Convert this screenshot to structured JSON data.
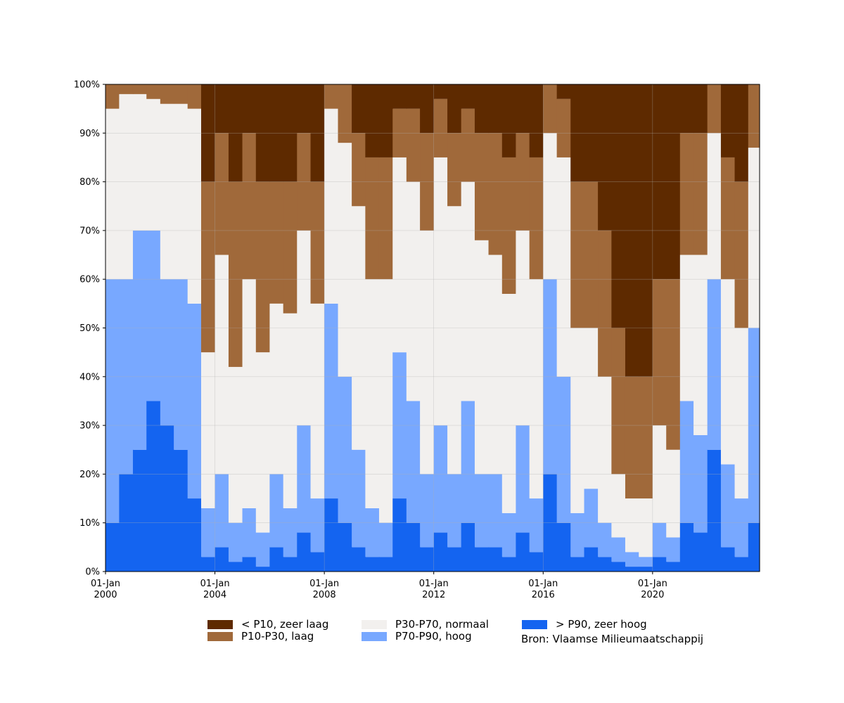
{
  "chart_data": {
    "type": "area",
    "stacked": true,
    "normalized": true,
    "title": "",
    "xlabel": "",
    "ylabel": "",
    "x_range": [
      "2000-01-01",
      "2023-11-30"
    ],
    "ylim": [
      0,
      100
    ],
    "y_ticks": [
      "0%",
      "10%",
      "20%",
      "30%",
      "40%",
      "50%",
      "60%",
      "70%",
      "80%",
      "90%",
      "100%"
    ],
    "x_ticks": [
      {
        "date": "2000-01-01",
        "line1": "01-Jan",
        "line2": "2000"
      },
      {
        "date": "2004-01-01",
        "line1": "01-Jan",
        "line2": "2004"
      },
      {
        "date": "2008-01-01",
        "line1": "01-Jan",
        "line2": "2008"
      },
      {
        "date": "2012-01-01",
        "line1": "01-Jan",
        "line2": "2012"
      },
      {
        "date": "2016-01-01",
        "line1": "01-Jan",
        "line2": "2016"
      },
      {
        "date": "2020-01-01",
        "line1": "01-Jan",
        "line2": "2020"
      }
    ],
    "grid": true,
    "legend_placement": "bottom",
    "x": [
      "2000-01",
      "2000-07",
      "2001-01",
      "2001-07",
      "2002-01",
      "2002-07",
      "2003-01",
      "2003-07",
      "2004-01",
      "2004-07",
      "2005-01",
      "2005-07",
      "2006-01",
      "2006-07",
      "2007-01",
      "2007-07",
      "2008-01",
      "2008-07",
      "2009-01",
      "2009-07",
      "2010-01",
      "2010-07",
      "2011-01",
      "2011-07",
      "2012-01",
      "2012-07",
      "2013-01",
      "2013-07",
      "2014-01",
      "2014-07",
      "2015-01",
      "2015-07",
      "2016-01",
      "2016-07",
      "2017-01",
      "2017-07",
      "2018-01",
      "2018-07",
      "2019-01",
      "2019-07",
      "2020-01",
      "2020-07",
      "2021-01",
      "2021-07",
      "2022-01",
      "2022-07",
      "2023-01",
      "2023-07"
    ],
    "series": [
      {
        "name": "> P90, zeer hoog",
        "color": "#1464f0",
        "values": [
          10,
          20,
          25,
          35,
          30,
          25,
          15,
          3,
          5,
          2,
          3,
          1,
          5,
          3,
          8,
          4,
          15,
          10,
          5,
          3,
          3,
          15,
          10,
          5,
          8,
          5,
          10,
          5,
          5,
          3,
          8,
          4,
          20,
          10,
          3,
          5,
          3,
          2,
          1,
          1,
          3,
          2,
          10,
          8,
          25,
          5,
          3,
          10
        ]
      },
      {
        "name": "P70-P90, hoog",
        "color": "#78a8ff",
        "values": [
          50,
          40,
          45,
          35,
          30,
          35,
          40,
          10,
          15,
          8,
          10,
          7,
          15,
          10,
          22,
          11,
          40,
          30,
          20,
          10,
          7,
          30,
          25,
          15,
          22,
          15,
          25,
          15,
          15,
          9,
          22,
          11,
          40,
          30,
          9,
          12,
          7,
          5,
          3,
          2,
          7,
          5,
          25,
          20,
          35,
          17,
          12,
          40
        ]
      },
      {
        "name": "P30-P70, normaal",
        "color": "#f2f0ee",
        "values": [
          35,
          38,
          28,
          27,
          36,
          36,
          40,
          32,
          45,
          32,
          47,
          37,
          35,
          40,
          40,
          40,
          40,
          48,
          50,
          47,
          50,
          40,
          45,
          50,
          55,
          55,
          45,
          48,
          45,
          45,
          40,
          45,
          30,
          45,
          38,
          33,
          30,
          13,
          11,
          12,
          20,
          18,
          30,
          37,
          30,
          38,
          35,
          37
        ]
      },
      {
        "name": "P10-P30, laag",
        "color": "#a0693a",
        "values": [
          5,
          2,
          2,
          3,
          4,
          4,
          5,
          35,
          25,
          38,
          30,
          35,
          25,
          27,
          20,
          25,
          5,
          12,
          15,
          25,
          25,
          10,
          15,
          20,
          12,
          15,
          15,
          22,
          25,
          28,
          20,
          25,
          10,
          12,
          30,
          30,
          30,
          30,
          25,
          25,
          30,
          35,
          25,
          25,
          10,
          25,
          30,
          13
        ]
      },
      {
        "name": "< P10, zeer laag",
        "color": "#5e2a00",
        "values": [
          0,
          0,
          0,
          0,
          0,
          0,
          0,
          20,
          10,
          20,
          10,
          20,
          20,
          20,
          10,
          20,
          0,
          0,
          10,
          15,
          15,
          5,
          5,
          10,
          3,
          10,
          5,
          10,
          10,
          15,
          10,
          15,
          0,
          3,
          20,
          20,
          30,
          50,
          60,
          60,
          40,
          40,
          10,
          10,
          0,
          15,
          20,
          0
        ]
      }
    ],
    "legend": [
      {
        "label": "< P10, zeer laag",
        "color": "#5e2a00"
      },
      {
        "label": "P10-P30, laag",
        "color": "#a0693a"
      },
      {
        "label": "P30-P70, normaal",
        "color": "#f2f0ee"
      },
      {
        "label": "P70-P90, hoog",
        "color": "#78a8ff"
      },
      {
        "label": "> P90, zeer hoog",
        "color": "#1464f0"
      }
    ],
    "annotation": "Bron: Vlaamse Milieumaatschappij"
  }
}
